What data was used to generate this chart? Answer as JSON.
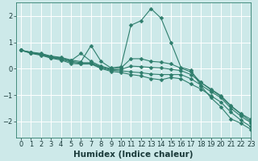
{
  "xlabel": "Humidex (Indice chaleur)",
  "ylabel": "",
  "xlim": [
    -0.5,
    23
  ],
  "ylim": [
    -2.6,
    2.5
  ],
  "xticks": [
    0,
    1,
    2,
    3,
    4,
    5,
    6,
    7,
    8,
    9,
    10,
    11,
    12,
    13,
    14,
    15,
    16,
    17,
    18,
    19,
    20,
    21,
    22,
    23
  ],
  "yticks": [
    -2,
    -1,
    0,
    1,
    2
  ],
  "background_color": "#cde9e9",
  "grid_color": "#ffffff",
  "line_color": "#2e7d6c",
  "lines": [
    [
      0.7,
      0.63,
      0.58,
      0.48,
      0.43,
      0.33,
      0.27,
      0.88,
      0.28,
      0.03,
      0.08,
      1.65,
      1.82,
      2.28,
      1.92,
      1.0,
      0.05,
      -0.05,
      -0.65,
      -1.1,
      -1.45,
      -1.9,
      -2.07,
      -2.3
    ],
    [
      0.7,
      0.62,
      0.56,
      0.46,
      0.41,
      0.31,
      0.58,
      0.28,
      0.1,
      0.0,
      0.03,
      0.38,
      0.38,
      0.28,
      0.25,
      0.18,
      0.02,
      -0.12,
      -0.52,
      -0.8,
      -1.05,
      -1.42,
      -1.72,
      -2.0
    ],
    [
      0.7,
      0.61,
      0.55,
      0.44,
      0.38,
      0.28,
      0.23,
      0.23,
      0.07,
      -0.03,
      -0.03,
      0.1,
      0.08,
      0.05,
      0.03,
      -0.02,
      -0.07,
      -0.22,
      -0.52,
      -0.77,
      -1.02,
      -1.4,
      -1.7,
      -1.92
    ],
    [
      0.7,
      0.6,
      0.53,
      0.42,
      0.36,
      0.25,
      0.2,
      0.2,
      0.04,
      -0.06,
      -0.08,
      -0.12,
      -0.15,
      -0.2,
      -0.22,
      -0.22,
      -0.22,
      -0.38,
      -0.62,
      -0.87,
      -1.1,
      -1.5,
      -1.8,
      -2.05
    ],
    [
      0.7,
      0.58,
      0.51,
      0.4,
      0.33,
      0.2,
      0.18,
      0.18,
      0.01,
      -0.1,
      -0.14,
      -0.22,
      -0.27,
      -0.37,
      -0.42,
      -0.33,
      -0.38,
      -0.58,
      -0.77,
      -1.02,
      -1.27,
      -1.65,
      -1.95,
      -2.2
    ]
  ],
  "marker": "D",
  "markersize": 2.5,
  "linewidth": 0.8,
  "tick_fontsize": 6,
  "label_fontsize": 7.5
}
